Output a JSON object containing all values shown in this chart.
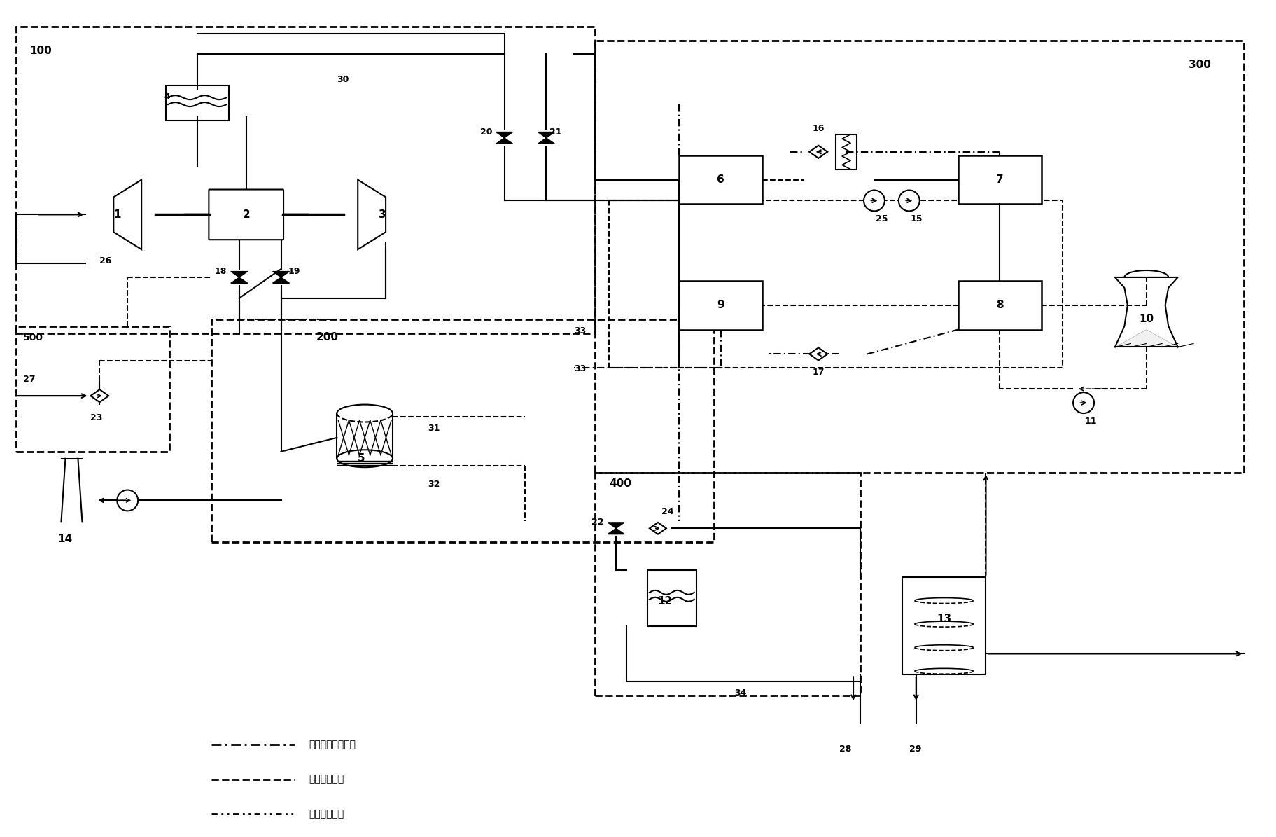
{
  "bg_color": "#ffffff",
  "line_color": "#000000",
  "dash_line": "#000000",
  "fig_width": 18.24,
  "fig_height": 11.95,
  "title": "",
  "legend_items": [
    {
      "label": "吸收制冷循环管路",
      "style": "dash-dot"
    },
    {
      "label": "冷却循环管路",
      "style": "dashed"
    },
    {
      "label": "空调制冷管路",
      "style": "dash-dot-dot"
    }
  ]
}
